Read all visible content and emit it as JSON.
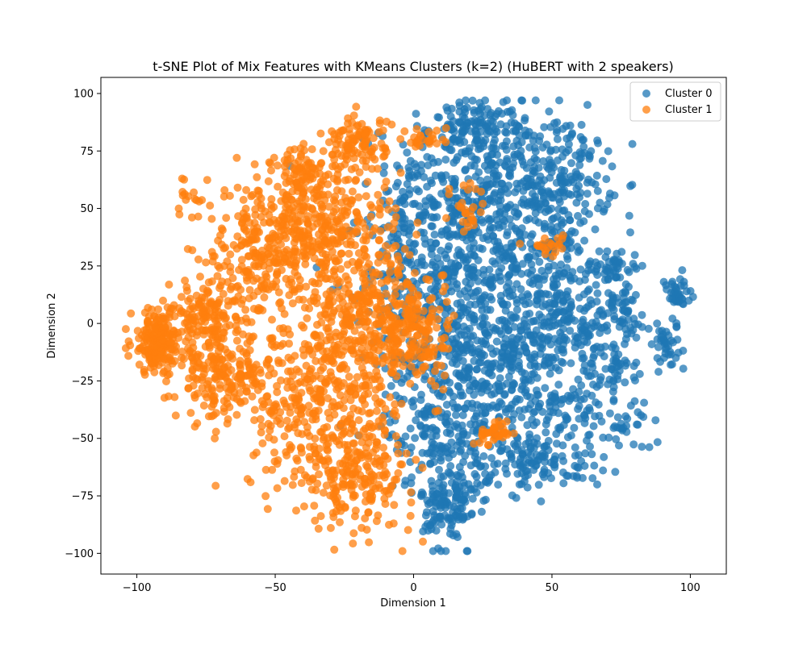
{
  "chart_data": {
    "type": "scatter",
    "title": "t-SNE Plot of Mix Features with KMeans Clusters (k=2) (HuBERT with 2 speakers)",
    "xlabel": "Dimension 1",
    "ylabel": "Dimension 2",
    "xlim": [
      -113,
      113
    ],
    "ylim": [
      -109,
      107
    ],
    "xticks": [
      -100,
      -50,
      0,
      50,
      100
    ],
    "yticks": [
      -100,
      -75,
      -50,
      -25,
      0,
      25,
      50,
      75,
      100
    ],
    "xtick_labels": [
      "−100",
      "−50",
      "0",
      "50",
      "100"
    ],
    "ytick_labels": [
      "−100",
      "−75",
      "−50",
      "−25",
      "0",
      "25",
      "50",
      "75",
      "100"
    ],
    "grid": false,
    "legend_position": "top-right",
    "series": [
      {
        "name": "Cluster 0",
        "color": "#1f77b4",
        "regions": [
          {
            "cx": 28,
            "cy": 60,
            "sx": 18,
            "sy": 18,
            "share": 0.16
          },
          {
            "cx": 22,
            "cy": 85,
            "sx": 8,
            "sy": 6,
            "share": 0.04
          },
          {
            "cx": 55,
            "cy": 62,
            "sx": 8,
            "sy": 12,
            "share": 0.05
          },
          {
            "cx": 15,
            "cy": 20,
            "sx": 16,
            "sy": 18,
            "share": 0.14
          },
          {
            "cx": 50,
            "cy": 20,
            "sx": 10,
            "sy": 12,
            "share": 0.05
          },
          {
            "cx": 25,
            "cy": -15,
            "sx": 16,
            "sy": 14,
            "share": 0.12
          },
          {
            "cx": 55,
            "cy": -5,
            "sx": 12,
            "sy": 10,
            "share": 0.06
          },
          {
            "cx": 10,
            "cy": -45,
            "sx": 10,
            "sy": 15,
            "share": 0.08
          },
          {
            "cx": 13,
            "cy": -80,
            "sx": 5,
            "sy": 10,
            "share": 0.05
          },
          {
            "cx": 45,
            "cy": -60,
            "sx": 12,
            "sy": 6,
            "share": 0.05
          },
          {
            "cx": 50,
            "cy": -38,
            "sx": 12,
            "sy": 6,
            "share": 0.04
          },
          {
            "cx": 72,
            "cy": 25,
            "sx": 5,
            "sy": 4,
            "share": 0.02
          },
          {
            "cx": 75,
            "cy": 5,
            "sx": 5,
            "sy": 6,
            "share": 0.02
          },
          {
            "cx": 70,
            "cy": -20,
            "sx": 5,
            "sy": 6,
            "share": 0.02
          },
          {
            "cx": 95,
            "cy": 12,
            "sx": 3,
            "sy": 4,
            "share": 0.015
          },
          {
            "cx": 92,
            "cy": -10,
            "sx": 5,
            "sy": 6,
            "share": 0.015
          },
          {
            "cx": 78,
            "cy": -45,
            "sx": 4,
            "sy": 5,
            "share": 0.01
          },
          {
            "cx": -5,
            "cy": 35,
            "sx": 5,
            "sy": 20,
            "share": 0.03
          }
        ]
      },
      {
        "name": "Cluster 1",
        "color": "#ff7f0e",
        "regions": [
          {
            "cx": -92,
            "cy": -8,
            "sx": 5,
            "sy": 7,
            "share": 0.08
          },
          {
            "cx": -75,
            "cy": 5,
            "sx": 6,
            "sy": 5,
            "share": 0.04
          },
          {
            "cx": -70,
            "cy": -22,
            "sx": 8,
            "sy": 10,
            "share": 0.08
          },
          {
            "cx": -55,
            "cy": 30,
            "sx": 10,
            "sy": 14,
            "share": 0.1
          },
          {
            "cx": -30,
            "cy": 40,
            "sx": 12,
            "sy": 16,
            "share": 0.13
          },
          {
            "cx": -20,
            "cy": 78,
            "sx": 5,
            "sy": 6,
            "share": 0.04
          },
          {
            "cx": -40,
            "cy": 65,
            "sx": 6,
            "sy": 6,
            "share": 0.03
          },
          {
            "cx": -35,
            "cy": -35,
            "sx": 14,
            "sy": 18,
            "share": 0.14
          },
          {
            "cx": -20,
            "cy": -65,
            "sx": 10,
            "sy": 12,
            "share": 0.08
          },
          {
            "cx": -15,
            "cy": 0,
            "sx": 12,
            "sy": 14,
            "share": 0.12
          },
          {
            "cx": 0,
            "cy": -5,
            "sx": 6,
            "sy": 10,
            "share": 0.04
          },
          {
            "cx": -80,
            "cy": 56,
            "sx": 2,
            "sy": 3,
            "share": 0.005
          },
          {
            "cx": 30,
            "cy": -47,
            "sx": 4,
            "sy": 3,
            "share": 0.015
          },
          {
            "cx": 48,
            "cy": 34,
            "sx": 3,
            "sy": 2,
            "share": 0.008
          },
          {
            "cx": 5,
            "cy": 80,
            "sx": 4,
            "sy": 3,
            "share": 0.01
          },
          {
            "cx": 20,
            "cy": 50,
            "sx": 3,
            "sy": 8,
            "share": 0.01
          }
        ]
      }
    ]
  }
}
